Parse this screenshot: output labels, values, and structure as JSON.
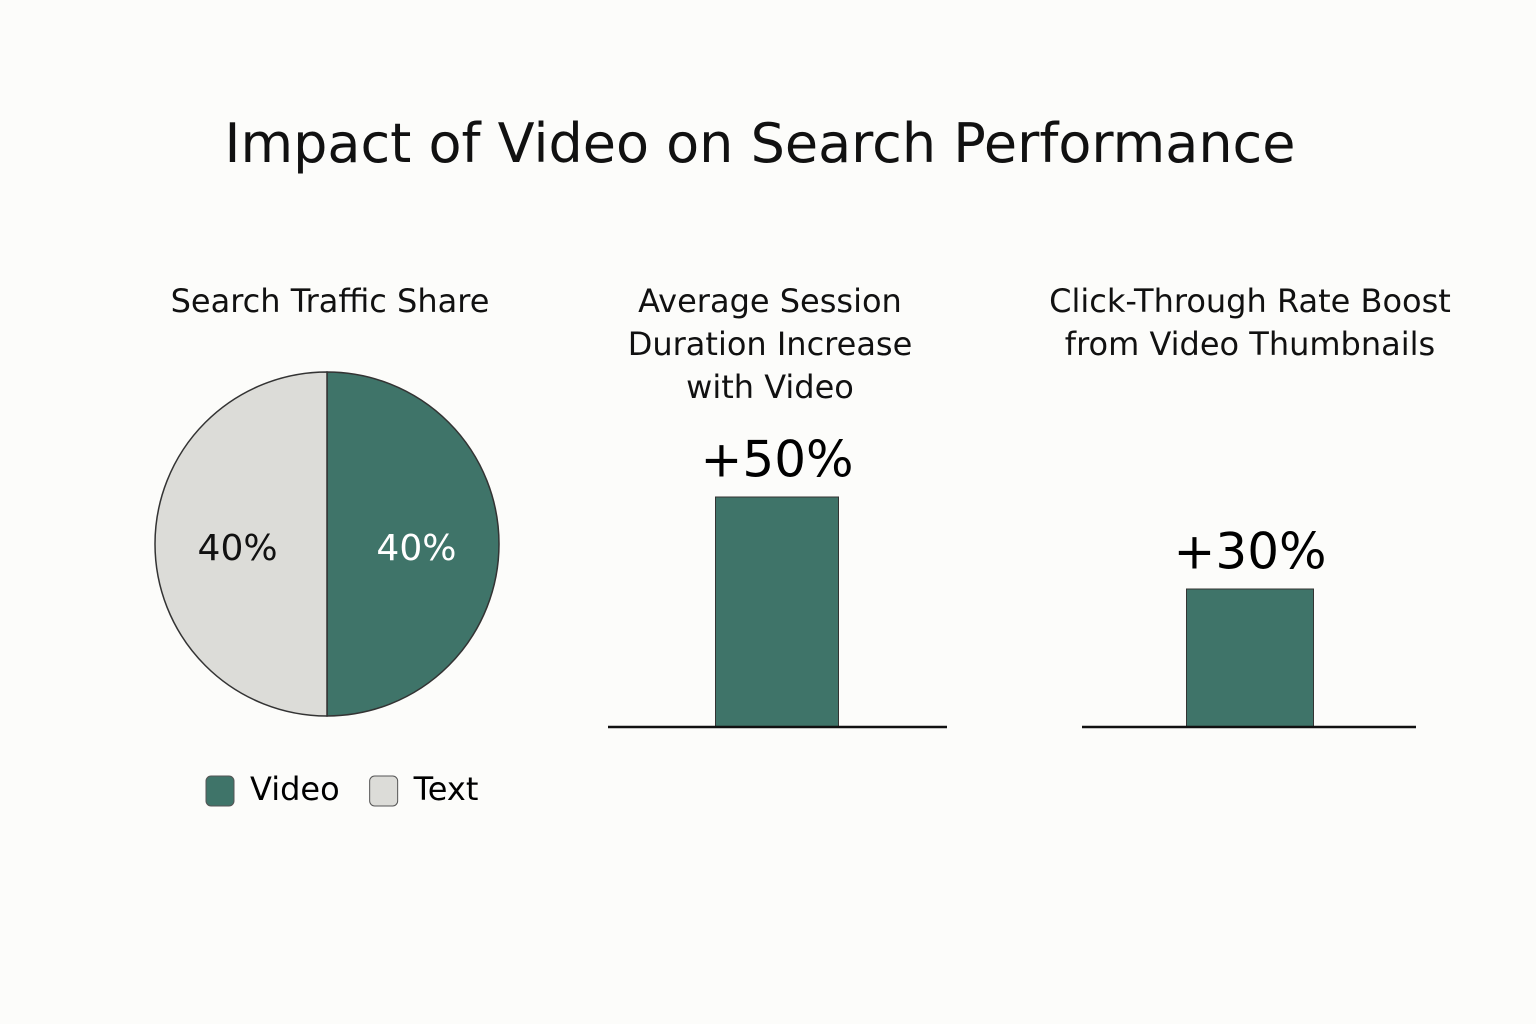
{
  "title": "Impact of Video on Search Performance",
  "chart_data": [
    {
      "type": "pie",
      "title": "Search Traffic Share",
      "categories": [
        "Video",
        "Text"
      ],
      "values": [
        40,
        40
      ],
      "value_labels": [
        "40%",
        "40%"
      ],
      "colors": [
        "#3f7469",
        "#dcdcd8"
      ],
      "legend": "bottom"
    },
    {
      "type": "bar",
      "title": "Average Session Duration Increase with Video",
      "values": [
        50
      ],
      "value_labels": [
        "+50%"
      ],
      "color": "#3f7469"
    },
    {
      "type": "bar",
      "title": "Click-Through Rate Boost from Video Thumbnails",
      "values": [
        30
      ],
      "value_labels": [
        "+30%"
      ],
      "color": "#3f7469"
    }
  ]
}
